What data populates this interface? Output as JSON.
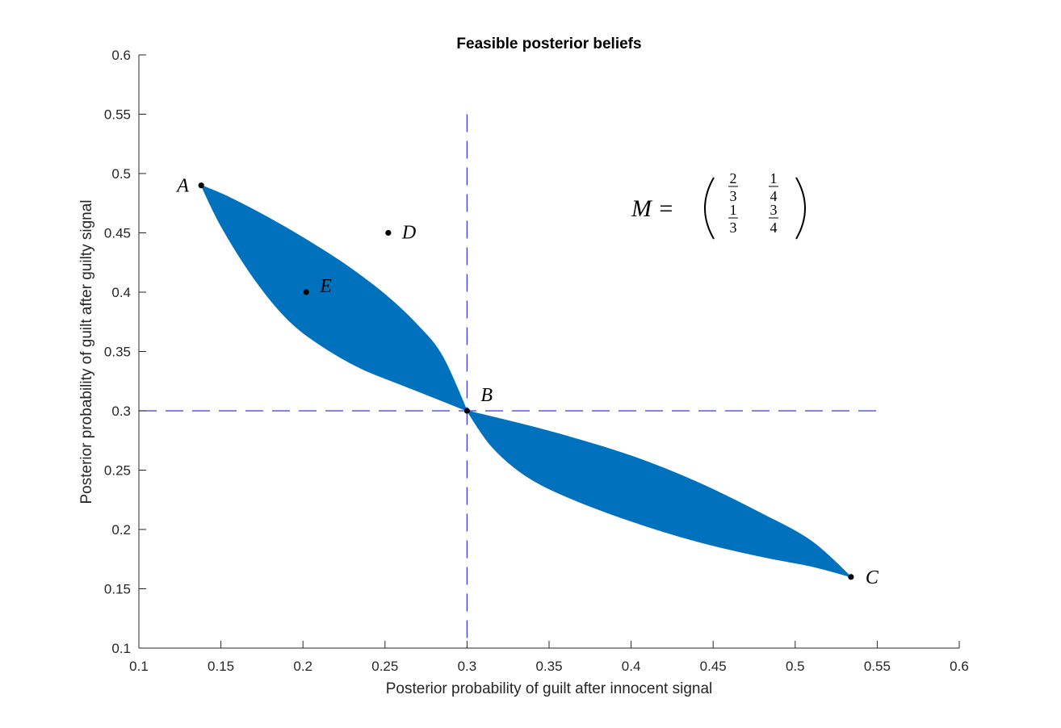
{
  "chart_data": {
    "type": "area",
    "title": "Feasible posterior beliefs",
    "xlabel": "Posterior probability of guilt after innocent signal",
    "ylabel": "Posterior probability of guilt after guilty signal",
    "xlim": [
      0.1,
      0.6
    ],
    "ylim": [
      0.1,
      0.6
    ],
    "xticks": [
      "0.1",
      "0.15",
      "0.2",
      "0.25",
      "0.3",
      "0.35",
      "0.4",
      "0.45",
      "0.5",
      "0.55",
      "0.6"
    ],
    "yticks": [
      "0.1",
      "0.15",
      "0.2",
      "0.25",
      "0.3",
      "0.35",
      "0.4",
      "0.45",
      "0.5",
      "0.55",
      "0.6"
    ],
    "grid": false,
    "fill_color": "#0072bd",
    "reference_line_color": "#3b3bd6",
    "region_upper_lobe": {
      "boundary_a": [
        [
          0.138,
          0.49
        ],
        [
          0.155,
          0.48
        ],
        [
          0.18,
          0.462
        ],
        [
          0.2,
          0.446
        ],
        [
          0.225,
          0.424
        ],
        [
          0.25,
          0.398
        ],
        [
          0.27,
          0.372
        ],
        [
          0.285,
          0.346
        ],
        [
          0.3,
          0.3
        ]
      ],
      "boundary_b": [
        [
          0.138,
          0.49
        ],
        [
          0.15,
          0.456
        ],
        [
          0.17,
          0.412
        ],
        [
          0.19,
          0.378
        ],
        [
          0.21,
          0.356
        ],
        [
          0.235,
          0.336
        ],
        [
          0.26,
          0.322
        ],
        [
          0.28,
          0.311
        ],
        [
          0.3,
          0.3
        ]
      ]
    },
    "region_lower_lobe": {
      "boundary_a": [
        [
          0.3,
          0.3
        ],
        [
          0.33,
          0.29
        ],
        [
          0.36,
          0.279
        ],
        [
          0.4,
          0.262
        ],
        [
          0.44,
          0.24
        ],
        [
          0.48,
          0.213
        ],
        [
          0.51,
          0.19
        ],
        [
          0.534,
          0.16
        ]
      ],
      "boundary_b": [
        [
          0.3,
          0.3
        ],
        [
          0.315,
          0.27
        ],
        [
          0.335,
          0.246
        ],
        [
          0.36,
          0.228
        ],
        [
          0.4,
          0.207
        ],
        [
          0.44,
          0.19
        ],
        [
          0.48,
          0.177
        ],
        [
          0.51,
          0.169
        ],
        [
          0.534,
          0.16
        ]
      ]
    },
    "reference_lines": {
      "x": 0.3,
      "y": 0.3,
      "y_max": 0.55,
      "x_max": 0.55
    },
    "points": [
      {
        "label": "A",
        "x": 0.138,
        "y": 0.49
      },
      {
        "label": "B",
        "x": 0.3,
        "y": 0.3
      },
      {
        "label": "C",
        "x": 0.534,
        "y": 0.16
      },
      {
        "label": "D",
        "x": 0.252,
        "y": 0.45
      },
      {
        "label": "E",
        "x": 0.202,
        "y": 0.4
      }
    ],
    "annotation": {
      "lhs": "M =",
      "matrix": [
        [
          [
            "2",
            "3"
          ],
          [
            "1",
            "4"
          ]
        ],
        [
          [
            "1",
            "3"
          ],
          [
            "3",
            "4"
          ]
        ]
      ]
    }
  }
}
